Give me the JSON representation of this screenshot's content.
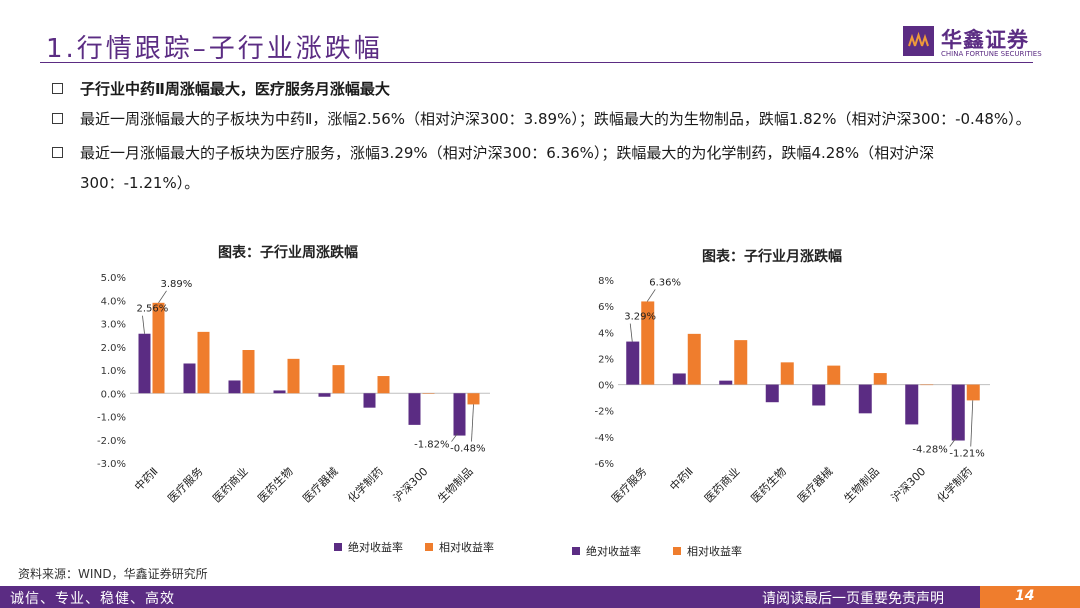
{
  "header": {
    "title": "1.行情跟踪–子行业涨跌幅"
  },
  "logo": {
    "cn": "华鑫证券",
    "en": "CHINA FORTUNE SECURITIES"
  },
  "bullets": [
    "子行业中药Ⅱ周涨幅最大，医疗服务月涨幅最大",
    "最近一周涨幅最大的子板块为中药Ⅱ，涨幅2.56%（相对沪深300：3.89%）；跌幅最大的为生物制品，跌幅1.82%（相对沪深300：-0.48%）。",
    "最近一月涨幅最大的子板块为医疗服务，涨幅3.29%（相对沪深300：6.36%）；跌幅最大的为化学制药，跌幅4.28%（相对沪深300：-1.21%）。"
  ],
  "colors": {
    "absolute": "#5b2c83",
    "relative": "#ef7d2d",
    "brand": "#5b2c83"
  },
  "chart_data": [
    {
      "type": "bar",
      "title": "图表：子行业周涨跌幅",
      "categories": [
        "中药Ⅱ",
        "医疗服务",
        "医药商业",
        "医药生物",
        "医疗器械",
        "化学制药",
        "沪深300",
        "生物制品"
      ],
      "series": [
        {
          "name": "绝对收益率",
          "values": [
            2.56,
            1.28,
            0.55,
            0.12,
            -0.15,
            -0.62,
            -1.36,
            -1.82
          ]
        },
        {
          "name": "相对收益率",
          "values": [
            3.89,
            2.64,
            1.86,
            1.48,
            1.21,
            0.74,
            0.0,
            -0.48
          ]
        }
      ],
      "ylim": [
        -3,
        5
      ],
      "yticks": [
        "-3.0%",
        "-2.0%",
        "-1.0%",
        "0.0%",
        "1.0%",
        "2.0%",
        "3.0%",
        "4.0%",
        "5.0%"
      ],
      "data_labels": {
        "abs_max": "2.56%",
        "rel_max": "3.89%",
        "abs_min": "-1.82%",
        "rel_min": "-0.48%"
      },
      "legend": "bottom"
    },
    {
      "type": "bar",
      "title": "图表：子行业月涨跌幅",
      "categories": [
        "医疗服务",
        "中药Ⅱ",
        "医药商业",
        "医药生物",
        "医疗器械",
        "生物制品",
        "沪深300",
        "化学制药"
      ],
      "series": [
        {
          "name": "绝对收益率",
          "values": [
            3.29,
            0.85,
            0.3,
            -1.35,
            -1.6,
            -2.2,
            -3.05,
            -4.28
          ]
        },
        {
          "name": "相对收益率",
          "values": [
            6.36,
            3.88,
            3.4,
            1.7,
            1.45,
            0.88,
            0.0,
            -1.21
          ]
        }
      ],
      "ylim": [
        -6,
        8
      ],
      "yticks": [
        "-6%",
        "-4%",
        "-2%",
        "0%",
        "2%",
        "4%",
        "6%",
        "8%"
      ],
      "data_labels": {
        "abs_max": "3.29%",
        "rel_max": "6.36%",
        "abs_min": "-4.28%",
        "rel_min": "-1.21%"
      },
      "legend": "bottom"
    }
  ],
  "source": "资料来源：WIND，华鑫证券研究所",
  "footer": {
    "left": "诚信、专业、稳健、高效",
    "right": "请阅读最后一页重要免责声明",
    "page": "14"
  }
}
